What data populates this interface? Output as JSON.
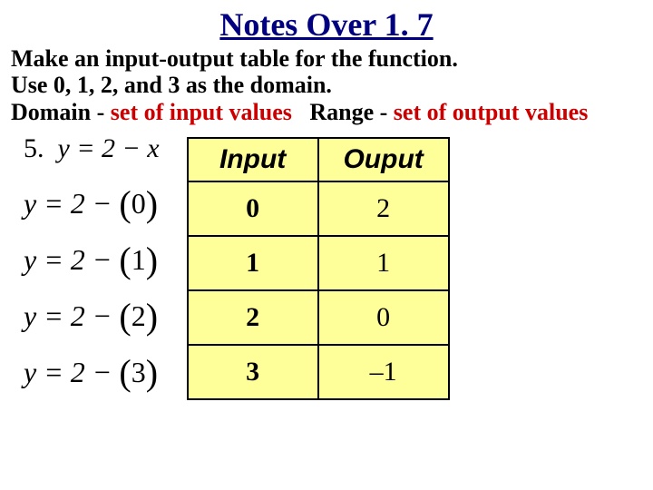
{
  "title": "Notes Over 1. 7",
  "instructions": {
    "line1": "Make an input-output table for the function.",
    "line2": "Use 0, 1, 2, and 3 as the domain."
  },
  "definitions": {
    "domain_label": "Domain -",
    "domain_text": "set of input values",
    "range_label": "Range -",
    "range_text": "set of output values"
  },
  "colors": {
    "title": "#000080",
    "body_text": "#000000",
    "def_value": "#cc0000",
    "table_header_bg": "#ffff99",
    "table_cell_bg": "#ffff99",
    "table_border": "#000000",
    "background": "#ffffff"
  },
  "problem": {
    "number": "5.",
    "equation": "y = 2 − x",
    "substitutions": [
      {
        "prefix": "y = 2 − ",
        "arg": "0"
      },
      {
        "prefix": "y = 2 − ",
        "arg": "1"
      },
      {
        "prefix": "y = 2 − ",
        "arg": "2"
      },
      {
        "prefix": "y = 2 − ",
        "arg": "3"
      }
    ]
  },
  "table": {
    "headers": {
      "input": "Input",
      "output": "Ouput"
    },
    "rows": [
      {
        "input": "0",
        "output": "2"
      },
      {
        "input": "1",
        "output": "1"
      },
      {
        "input": "2",
        "output": "0"
      },
      {
        "input": "3",
        "output": "–1"
      }
    ]
  }
}
